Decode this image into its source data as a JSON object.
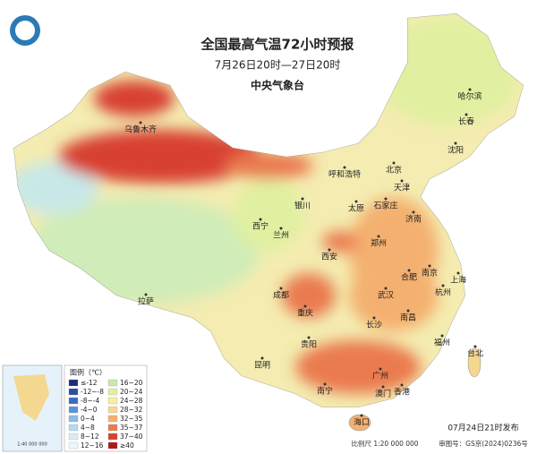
{
  "header": {
    "title": "全国最高气温72小时预报",
    "subtitle": "7月26日20时—27日20时",
    "organization": "中央气象台"
  },
  "cities": [
    "乌鲁木齐",
    "哈尔滨",
    "长春",
    "沈阳",
    "呼和浩特",
    "北京",
    "天津",
    "石家庄",
    "太原",
    "济南",
    "银川",
    "西宁",
    "兰州",
    "郑州",
    "西安",
    "合肥",
    "南京",
    "上海",
    "杭州",
    "武汉",
    "成都",
    "重庆",
    "长沙",
    "南昌",
    "福州",
    "台北",
    "贵阳",
    "昆明",
    "南宁",
    "广州",
    "澳门",
    "香港",
    "海口",
    "拉萨"
  ],
  "legend": {
    "title": "图例（℃）",
    "items": [
      {
        "label": "≤-12",
        "color": "#1e2a7a"
      },
      {
        "label": "-12~-8",
        "color": "#2b4ea0"
      },
      {
        "label": "-8~-4",
        "color": "#3b6cc4"
      },
      {
        "label": "-4~0",
        "color": "#5a92d8"
      },
      {
        "label": "0~4",
        "color": "#8dbbe8"
      },
      {
        "label": "4~8",
        "color": "#b6d8f0"
      },
      {
        "label": "8~12",
        "color": "#d9ecf6"
      },
      {
        "label": "12~16",
        "color": "#eef7f8"
      },
      {
        "label": "16~20",
        "color": "#c8e8b0"
      },
      {
        "label": "20~24",
        "color": "#e0f0a0"
      },
      {
        "label": "24~28",
        "color": "#f4f0a0"
      },
      {
        "label": "28~32",
        "color": "#f8d890"
      },
      {
        "label": "32~35",
        "color": "#f4b070"
      },
      {
        "label": "35~37",
        "color": "#ea7a50"
      },
      {
        "label": "37~40",
        "color": "#d84030"
      },
      {
        "label": "≥40",
        "color": "#b01818"
      }
    ]
  },
  "inset": {
    "scale": "1:40 000 000"
  },
  "footer": {
    "issued": "07月24日21时发布",
    "scale": "比例尺 1:20 000 000",
    "approval": "审图号：GS京(2024)0236号"
  }
}
